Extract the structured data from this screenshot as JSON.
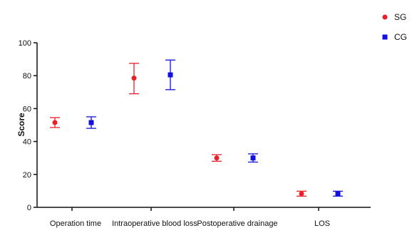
{
  "chart_data": {
    "type": "scatter",
    "title": "",
    "xlabel": "",
    "ylabel": "Score",
    "ylim": [
      0,
      100
    ],
    "yticks": [
      0,
      20,
      40,
      60,
      80,
      100
    ],
    "categories": [
      "Operation time",
      "Intraoperative blood loss",
      "Postoperative drainage",
      "LOS"
    ],
    "series": [
      {
        "name": "SG",
        "color": "#e8202a",
        "marker": "circle",
        "values": [
          51.5,
          78.5,
          30.0,
          8.3
        ],
        "error_low": [
          48.5,
          69.0,
          28.0,
          6.8
        ],
        "error_high": [
          54.5,
          87.5,
          32.0,
          9.8
        ]
      },
      {
        "name": "CG",
        "color": "#1010e0",
        "marker": "square",
        "values": [
          51.5,
          80.5,
          30.0,
          8.3
        ],
        "error_low": [
          48.0,
          71.5,
          27.5,
          6.8
        ],
        "error_high": [
          55.0,
          89.5,
          32.5,
          9.8
        ]
      }
    ],
    "legend_position": "top-right",
    "grid": false
  }
}
